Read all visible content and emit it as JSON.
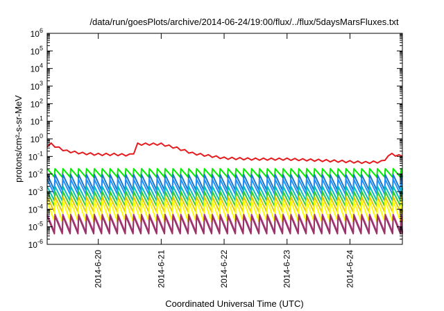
{
  "chart_data": {
    "type": "line",
    "title": "/data/run/goesPlots/archive/2014-06-24/19:00/flux/../flux/5daysMarsFluxes.txt",
    "xlabel": "Coordinated Universal Time (UTC)",
    "ylabel": "protons/cm²-s-sr-MeV",
    "yscale": "log",
    "ylim": [
      1e-06,
      1000000.0
    ],
    "xlim": [
      "2014-06-19 04:30",
      "2014-06-24 20:00"
    ],
    "x_ticks": [
      "2014-6-20",
      "2014-6-21",
      "2014-6-22",
      "2014-6-23",
      "2014-6-24"
    ],
    "y_ticks": [
      {
        "base": "10",
        "exp": "6"
      },
      {
        "base": "10",
        "exp": "5"
      },
      {
        "base": "10",
        "exp": "4"
      },
      {
        "base": "10",
        "exp": "3"
      },
      {
        "base": "10",
        "exp": "2"
      },
      {
        "base": "10",
        "exp": "1"
      },
      {
        "base": "10",
        "exp": "0"
      },
      {
        "base": "10",
        "exp": "-1"
      },
      {
        "base": "10",
        "exp": "-2"
      },
      {
        "base": "10",
        "exp": "-3"
      },
      {
        "base": "10",
        "exp": "-4"
      },
      {
        "base": "10",
        "exp": "-5"
      },
      {
        "base": "10",
        "exp": "-6"
      }
    ],
    "grid": false,
    "legend": "none",
    "sawtooth_period_hours": 3,
    "series": [
      {
        "color": "#e41a1c",
        "style": "wavy",
        "x": [
          "2014-06-19 04:30",
          "2014-06-19 06:00",
          "2014-06-19 09:00",
          "2014-06-19 12:00",
          "2014-06-19 18:00",
          "2014-06-20 00:00",
          "2014-06-20 06:00",
          "2014-06-20 12:00",
          "2014-06-20 13:30",
          "2014-06-20 15:00",
          "2014-06-20 18:00",
          "2014-06-21 00:00",
          "2014-06-21 06:00",
          "2014-06-21 12:00",
          "2014-06-22 00:00",
          "2014-06-22 12:00",
          "2014-06-23 00:00",
          "2014-06-23 12:00",
          "2014-06-24 00:00",
          "2014-06-24 06:00",
          "2014-06-24 12:00",
          "2014-06-24 16:00",
          "2014-06-24 20:00"
        ],
        "values": [
          0.3,
          0.5,
          0.3,
          0.2,
          0.15,
          0.13,
          0.13,
          0.12,
          0.12,
          0.5,
          0.5,
          0.5,
          0.3,
          0.15,
          0.08,
          0.07,
          0.07,
          0.06,
          0.05,
          0.045,
          0.05,
          0.13,
          0.1
        ]
      },
      {
        "color": "#00ee00",
        "style": "sawtooth",
        "x": [
          "2014-06-19 04:30",
          "2014-06-24 20:00"
        ],
        "peak": [
          0.02,
          0.02
        ],
        "trough": [
          0.0066,
          0.0066
        ]
      },
      {
        "color": "#1874cd",
        "style": "sawtooth",
        "x": [
          "2014-06-19 04:30",
          "2014-06-24 20:00"
        ],
        "peak": [
          0.0095,
          0.009
        ],
        "trough": [
          0.0012,
          0.0012
        ]
      },
      {
        "color": "#1e90ff",
        "style": "sawtooth",
        "x": [
          "2014-06-19 04:30",
          "2014-06-24 20:00"
        ],
        "peak": [
          0.005,
          0.005
        ],
        "trough": [
          0.0007,
          0.0007
        ]
      },
      {
        "color": "#00bfbf",
        "style": "sawtooth",
        "x": [
          "2014-06-19 04:30",
          "2014-06-24 20:00"
        ],
        "peak": [
          0.002,
          0.002
        ],
        "trough": [
          0.0003,
          0.0003
        ]
      },
      {
        "color": "#32cd32",
        "style": "sawtooth",
        "x": [
          "2014-06-19 04:30",
          "2014-06-24 20:00"
        ],
        "peak": [
          0.001,
          0.001
        ],
        "trough": [
          0.00015,
          0.00015
        ]
      },
      {
        "color": "#e6c800",
        "style": "sawtooth",
        "x": [
          "2014-06-19 04:30",
          "2014-06-24 20:00"
        ],
        "peak": [
          0.0005,
          0.0005
        ],
        "trough": [
          7e-05,
          7e-05
        ]
      },
      {
        "color": "#ffff00",
        "style": "sawtooth",
        "x": [
          "2014-06-19 04:30",
          "2014-06-24 20:00"
        ],
        "peak": [
          0.0003,
          0.0003
        ],
        "trough": [
          2e-05,
          2e-05
        ]
      },
      {
        "color": "#b03c96",
        "style": "sawtooth",
        "x": [
          "2014-06-19 04:30",
          "2014-06-24 20:00"
        ],
        "peak": [
          5e-05,
          5e-05
        ],
        "trough": [
          5e-06,
          5e-06
        ]
      },
      {
        "color": "#993366",
        "style": "sawtooth",
        "x": [
          "2014-06-19 04:30",
          "2014-06-24 20:00"
        ],
        "peak": [
          4e-05,
          4e-05
        ],
        "trough": [
          4e-06,
          4e-06
        ]
      }
    ]
  }
}
